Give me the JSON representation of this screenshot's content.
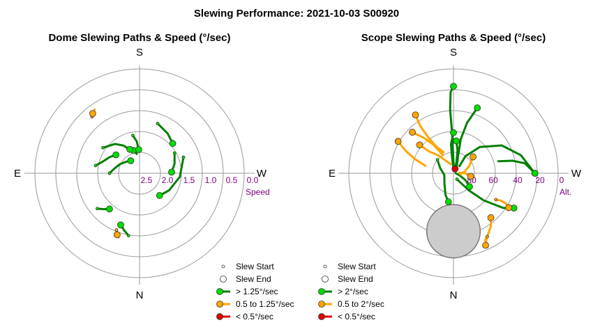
{
  "title": "Slewing Performance: 2021-10-03 S00920",
  "chart_data": [
    {
      "type": "scatter",
      "title": "Dome Slewing Paths & Speed (°/sec)",
      "directions": {
        "top": "S",
        "bottom": "N",
        "left": "E",
        "right": "W"
      },
      "axis_label": "Speed",
      "radial_ticks": [
        "2.5",
        "2.0",
        "1.5",
        "1.0",
        "0.5",
        "0.0"
      ],
      "legend": [
        {
          "label": "Slew Start",
          "marker": "small-open-circle"
        },
        {
          "label": "Slew End",
          "marker": "large-open-circle"
        },
        {
          "label": "> 1.25°/sec",
          "color": "#008000",
          "fill": "#00dd00"
        },
        {
          "label": "0.5 to 1.25°/sec",
          "color": "#ffa500",
          "fill": "#ffa500"
        },
        {
          "label": "< 0.5°/sec",
          "color": "#dd0000",
          "fill": "#dd0000"
        }
      ],
      "series": [
        {
          "category": "fast",
          "path": [
            [
              2.1,
              165
            ],
            [
              2.15,
              168
            ],
            [
              2.2,
              172
            ]
          ],
          "end": [
            2.1,
            165
          ]
        },
        {
          "category": "fast",
          "path": [
            [
              1.35,
              50
            ],
            [
              1.45,
              45
            ],
            [
              1.55,
              40
            ]
          ],
          "end": [
            1.55,
            40
          ]
        },
        {
          "category": "fast",
          "path": [
            [
              1.75,
              170
            ],
            [
              1.9,
              175
            ],
            [
              2.1,
              178
            ]
          ],
          "end": [
            2.1,
            178
          ]
        },
        {
          "category": "fast",
          "path": [
            [
              1.6,
              125
            ],
            [
              1.75,
              140
            ],
            [
              1.9,
              150
            ],
            [
              2.05,
              158
            ]
          ],
          "end": [
            2.05,
            158
          ]
        },
        {
          "category": "fast",
          "path": [
            [
              1.6,
              100
            ],
            [
              1.75,
              108
            ],
            [
              1.85,
              118
            ],
            [
              1.95,
              128
            ]
          ],
          "end": [
            1.95,
            128
          ]
        },
        {
          "category": "fast",
          "path": [
            [
              1.95,
              90
            ],
            [
              2.05,
              100
            ],
            [
              2.15,
              115
            ],
            [
              2.25,
              132
            ],
            [
              2.3,
              145
            ]
          ],
          "end": [
            2.3,
            145
          ]
        },
        {
          "category": "fast",
          "path": [
            [
              1.55,
              250
            ],
            [
              1.7,
              275
            ],
            [
              1.85,
              300
            ],
            [
              1.95,
              318
            ]
          ],
          "end": [
            1.95,
            318
          ]
        },
        {
          "category": "fast",
          "path": [
            [
              1.7,
              240
            ],
            [
              1.8,
              255
            ],
            [
              1.9,
              268
            ]
          ],
          "end": [
            1.9,
            268
          ]
        },
        {
          "category": "fast",
          "path": [
            [
              1.4,
              200
            ],
            [
              1.5,
              215
            ],
            [
              1.6,
              228
            ]
          ],
          "end": [
            1.6,
            228
          ]
        },
        {
          "category": "fast",
          "path": [
            [
              1.15,
              10
            ],
            [
              1.25,
              15
            ],
            [
              1.35,
              20
            ]
          ],
          "end": [
            1.35,
            20
          ]
        },
        {
          "category": "medium",
          "path": [
            [
              1.2,
              22
            ],
            [
              1.1,
              20
            ],
            [
              1.05,
              18
            ]
          ],
          "end": [
            1.1,
            20
          ]
        },
        {
          "category": "medium",
          "path": [
            [
              0.9,
              140
            ],
            [
              0.85,
              142
            ],
            [
              0.8,
              145
            ]
          ],
          "end": [
            0.85,
            142
          ]
        }
      ]
    },
    {
      "type": "scatter",
      "title": "Scope Slewing Paths & Speed (°/sec)",
      "directions": {
        "top": "S",
        "bottom": "N",
        "left": "E",
        "right": "W"
      },
      "axis_label": "Alt.",
      "radial_ticks": [
        "80",
        "60",
        "40",
        "20",
        "0"
      ],
      "obstruction": {
        "az": 0,
        "alt": 40,
        "radius_deg": 23
      },
      "legend": [
        {
          "label": "Slew Start",
          "marker": "small-open-circle"
        },
        {
          "label": "Slew End",
          "marker": "large-open-circle"
        },
        {
          "label": "> 2°/sec",
          "color": "#008000",
          "fill": "#00dd00"
        },
        {
          "label": "0.5 to 2°/sec",
          "color": "#ffa500",
          "fill": "#ffa500"
        },
        {
          "label": "< 0.5°/sec",
          "color": "#dd0000",
          "fill": "#dd0000"
        }
      ],
      "series": [
        {
          "category": "fast",
          "path": [
            [
              15,
              180
            ],
            [
              20,
              178
            ],
            [
              35,
              177
            ],
            [
              55,
              178
            ],
            [
              75,
              179
            ],
            [
              86,
              185
            ]
          ],
          "end": [
            15,
            180
          ]
        },
        {
          "category": "fast",
          "path": [
            [
              84,
              330
            ],
            [
              70,
              318
            ],
            [
              55,
              312
            ],
            [
              38,
              305
            ],
            [
              30,
              300
            ]
          ],
          "end": [
            30,
            300
          ]
        },
        {
          "category": "fast",
          "path": [
            [
              20,
              270
            ],
            [
              30,
              255
            ],
            [
              42,
              240
            ],
            [
              58,
              225
            ],
            [
              72,
              215
            ],
            [
              82,
              220
            ]
          ],
          "end": [
            20,
            270
          ]
        },
        {
          "category": "fast",
          "path": [
            [
              30,
              200
            ],
            [
              45,
              195
            ],
            [
              60,
              192
            ],
            [
              75,
              195
            ],
            [
              83,
              205
            ]
          ],
          "end": [
            30,
            200
          ]
        },
        {
          "category": "fast",
          "path": [
            [
              62,
              185
            ],
            [
              70,
              190
            ],
            [
              80,
              195
            ],
            [
              86,
              200
            ]
          ],
          "end": [
            62,
            185
          ]
        },
        {
          "category": "fast",
          "path": [
            [
              72,
              310
            ],
            [
              78,
              300
            ],
            [
              84,
              290
            ],
            [
              88,
              270
            ]
          ],
          "end": [
            72,
            310
          ]
        },
        {
          "category": "fast",
          "path": [
            [
              55,
              180
            ],
            [
              65,
              175
            ],
            [
              75,
              175
            ],
            [
              85,
              178
            ]
          ],
          "end": [
            55,
            180
          ]
        },
        {
          "category": "fast",
          "path": [
            [
              72,
              130
            ],
            [
              78,
              110
            ],
            [
              82,
              80
            ],
            [
              78,
              40
            ],
            [
              70,
              20
            ],
            [
              65,
              10
            ]
          ],
          "end": [
            65,
            10
          ]
        },
        {
          "category": "fast",
          "path": [
            [
              20,
              270
            ],
            [
              28,
              262
            ],
            [
              38,
              258
            ],
            [
              50,
              255
            ]
          ],
          "end": [
            20,
            270
          ]
        },
        {
          "category": "medium",
          "path": [
            [
              30,
              147
            ],
            [
              40,
              145
            ],
            [
              52,
              145
            ],
            [
              62,
              147
            ],
            [
              70,
              155
            ]
          ],
          "end": [
            30,
            147
          ]
        },
        {
          "category": "medium",
          "path": [
            [
              35,
              120
            ],
            [
              45,
              115
            ],
            [
              55,
              110
            ],
            [
              65,
              105
            ]
          ],
          "end": [
            35,
            120
          ]
        },
        {
          "category": "medium",
          "path": [
            [
              40,
              135
            ],
            [
              50,
              140
            ],
            [
              60,
              145
            ],
            [
              72,
              150
            ]
          ],
          "end": [
            40,
            135
          ]
        },
        {
          "category": "medium",
          "path": [
            [
              52,
              130
            ],
            [
              62,
              132
            ],
            [
              70,
              140
            ],
            [
              78,
              150
            ],
            [
              82,
              165
            ]
          ],
          "end": [
            52,
            130
          ]
        },
        {
          "category": "medium",
          "path": [
            [
              68,
              230
            ],
            [
              75,
              245
            ],
            [
              80,
              260
            ],
            [
              84,
              280
            ]
          ],
          "end": [
            68,
            230
          ]
        },
        {
          "category": "medium",
          "path": [
            [
              75,
              280
            ],
            [
              80,
              270
            ],
            [
              85,
              265
            ]
          ],
          "end": [
            75,
            280
          ]
        },
        {
          "category": "medium",
          "path": [
            [
              40,
              320
            ],
            [
              34,
              325
            ],
            [
              30,
              330
            ],
            [
              26,
              335
            ]
          ],
          "end": [
            40,
            320
          ]
        },
        {
          "category": "medium",
          "path": [
            [
              47,
              302
            ],
            [
              43,
              300
            ],
            [
              38,
              300
            ],
            [
              34,
              302
            ]
          ],
          "end": [
            34,
            302
          ]
        },
        {
          "category": "medium",
          "path": [
            [
              28,
              332
            ],
            [
              26,
              334
            ],
            [
              24,
              335
            ],
            [
              22,
              336
            ]
          ],
          "end": [
            22,
            336
          ]
        },
        {
          "category": "slow",
          "path": [
            [
              86,
              200
            ],
            [
              87,
              210
            ],
            [
              86,
              220
            ]
          ],
          "end": [
            86,
            200
          ]
        }
      ]
    }
  ]
}
